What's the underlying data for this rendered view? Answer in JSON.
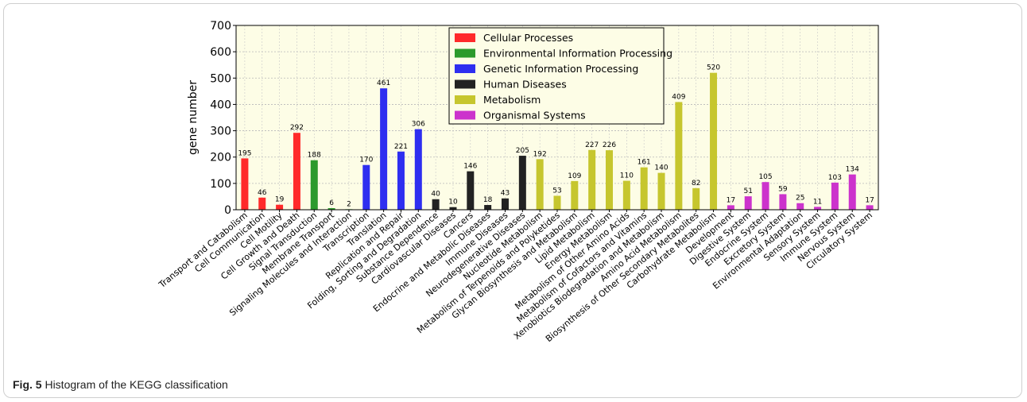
{
  "chart_data": {
    "type": "bar",
    "ylabel": "gene number",
    "ylim": [
      0,
      700
    ],
    "yticks": [
      0,
      100,
      200,
      300,
      400,
      500,
      600,
      700
    ],
    "grid": true,
    "legend_position": "top-center",
    "series": [
      {
        "name": "Cellular Processes",
        "color": "#ff2a2a"
      },
      {
        "name": "Environmental Information Processing",
        "color": "#2c9a2c"
      },
      {
        "name": "Genetic Information Processing",
        "color": "#2e2ef0"
      },
      {
        "name": "Human Diseases",
        "color": "#222222"
      },
      {
        "name": "Metabolism",
        "color": "#c6c62e"
      },
      {
        "name": "Organismal Systems",
        "color": "#cc33cc"
      }
    ],
    "categories": [
      "Transport and Catabolism",
      "Cell Communication",
      "Cell Motility",
      "Cell Growth and Death",
      "Signal Transduction",
      "Membrane Transport",
      "Signaling Molecules and Interaction",
      "Transcription",
      "Translation",
      "Replication and Repair",
      "Folding, Sorting and Degradation",
      "Substance Dependence",
      "Cardiovascular Diseases",
      "Cancers",
      "Endocrine and Metabolic Diseases",
      "Immune Diseases",
      "Neurodegenerative Diseases",
      "Nucleotide Metabolism",
      "Metabolism of Terpenoids and Polyketides",
      "Glycan Biosynthesis and Metabolism",
      "Lipid Metabolism",
      "Energy Metabolism",
      "Metabolism of Other Amino Acids",
      "Metabolism of Cofactors and Vitamins",
      "Xenobiotics Biodegradation and Metabolism",
      "Amino Acid Metabolism",
      "Biosynthesis of Other Secondary Metabolites",
      "Carbohydrate Metabolism",
      "Development",
      "Digestive System",
      "Endocrine System",
      "Excretory System",
      "Environmental Adaptation",
      "Sensory System",
      "Immune System",
      "Nervous System",
      "Circulatory System"
    ],
    "values": [
      195,
      46,
      19,
      292,
      188,
      6,
      2,
      170,
      461,
      221,
      306,
      40,
      10,
      146,
      18,
      43,
      205,
      192,
      53,
      109,
      227,
      226,
      110,
      161,
      140,
      409,
      82,
      520,
      17,
      51,
      105,
      59,
      25,
      11,
      103,
      134,
      17
    ],
    "group": [
      0,
      0,
      0,
      0,
      1,
      1,
      1,
      2,
      2,
      2,
      2,
      3,
      3,
      3,
      3,
      3,
      3,
      4,
      4,
      4,
      4,
      4,
      4,
      4,
      4,
      4,
      4,
      4,
      5,
      5,
      5,
      5,
      5,
      5,
      5,
      5,
      5
    ]
  },
  "caption": {
    "label": "Fig. 5",
    "text": " Histogram of the KEGG classification"
  }
}
